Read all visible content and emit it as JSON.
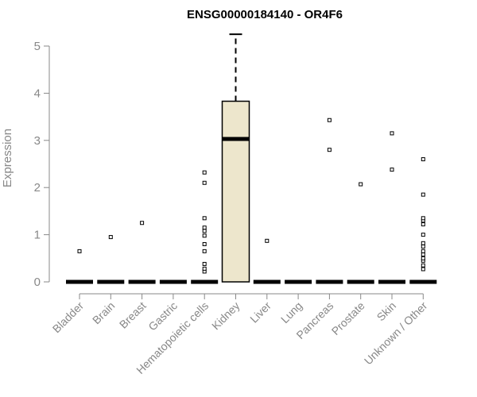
{
  "chart_data": {
    "type": "boxplot",
    "title": "ENSG00000184140 - OR4F6",
    "ylabel": "Expression",
    "ylim": [
      0,
      5.25
    ],
    "yticks": [
      "0",
      "1",
      "2",
      "3",
      "4",
      "5"
    ],
    "box_fill": "#ede6cc",
    "categories": [
      "Bladder",
      "Brain",
      "Breast",
      "Gastric",
      "Hematopoietic cells",
      "Kidney",
      "Liver",
      "Lung",
      "Pancreas",
      "Prostate",
      "Skin",
      "Unknown / Other"
    ],
    "boxes": [
      {
        "q1": 0,
        "median": 0,
        "q3": 0,
        "whisker_low": 0,
        "whisker_high": 0,
        "outliers": [
          0.65
        ]
      },
      {
        "q1": 0,
        "median": 0,
        "q3": 0,
        "whisker_low": 0,
        "whisker_high": 0,
        "outliers": [
          0.95
        ]
      },
      {
        "q1": 0,
        "median": 0,
        "q3": 0,
        "whisker_low": 0,
        "whisker_high": 0,
        "outliers": [
          1.25
        ]
      },
      {
        "q1": 0,
        "median": 0,
        "q3": 0,
        "whisker_low": 0,
        "whisker_high": 0,
        "outliers": []
      },
      {
        "q1": 0,
        "median": 0,
        "q3": 0,
        "whisker_low": 0,
        "whisker_high": 0,
        "outliers": [
          0.22,
          0.28,
          0.38,
          0.65,
          0.8,
          0.98,
          1.08,
          1.15,
          1.35,
          2.1,
          2.32
        ]
      },
      {
        "q1": 0,
        "median": 3.03,
        "q3": 3.83,
        "whisker_low": 0,
        "whisker_high": 5.25,
        "outliers": []
      },
      {
        "q1": 0,
        "median": 0,
        "q3": 0,
        "whisker_low": 0,
        "whisker_high": 0,
        "outliers": [
          0.87
        ]
      },
      {
        "q1": 0,
        "median": 0,
        "q3": 0,
        "whisker_low": 0,
        "whisker_high": 0,
        "outliers": []
      },
      {
        "q1": 0,
        "median": 0,
        "q3": 0,
        "whisker_low": 0,
        "whisker_high": 0,
        "outliers": [
          2.8,
          3.43
        ]
      },
      {
        "q1": 0,
        "median": 0,
        "q3": 0,
        "whisker_low": 0,
        "whisker_high": 0,
        "outliers": [
          2.07
        ]
      },
      {
        "q1": 0,
        "median": 0,
        "q3": 0,
        "whisker_low": 0,
        "whisker_high": 0,
        "outliers": [
          2.38,
          3.15
        ]
      },
      {
        "q1": 0,
        "median": 0,
        "q3": 0,
        "whisker_low": 0,
        "whisker_high": 0,
        "outliers": [
          0.27,
          0.35,
          0.45,
          0.5,
          0.58,
          0.65,
          0.75,
          0.82,
          1.0,
          1.22,
          1.3,
          1.35,
          1.85,
          2.6
        ]
      }
    ]
  }
}
